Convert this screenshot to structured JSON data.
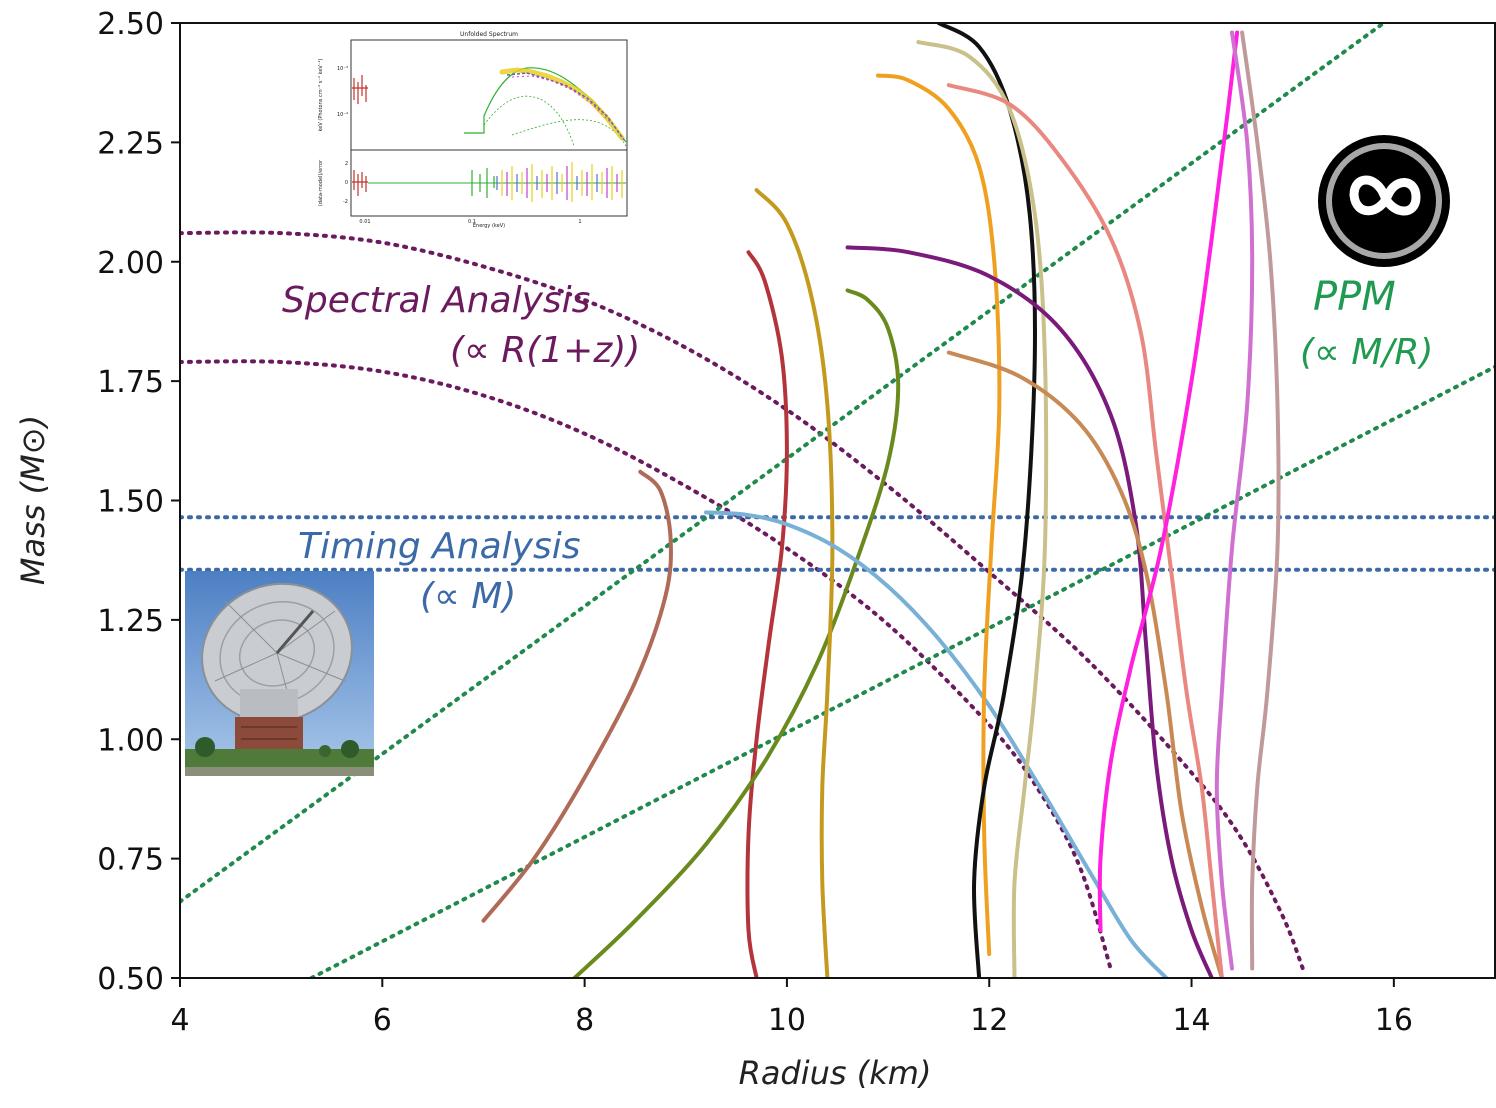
{
  "chart_data": {
    "type": "line",
    "xlabel": "Radius (km)",
    "ylabel": "Mass (M⊙)",
    "xlim": [
      4,
      17
    ],
    "ylim": [
      0.5,
      2.5
    ],
    "xticks": [
      "4",
      "6",
      "8",
      "10",
      "12",
      "14",
      "16"
    ],
    "yticks": [
      "0.50",
      "0.75",
      "1.00",
      "1.25",
      "1.50",
      "1.75",
      "2.00",
      "2.25",
      "2.50"
    ],
    "grid": false,
    "annotations": {
      "spectral_title": "Spectral Analysis",
      "spectral_prop": "(∝ R(1+z))",
      "timing_title": "Timing Analysis",
      "timing_prop": "(∝ M)",
      "ppm_title": "PPM",
      "ppm_prop": "(∝ M/R)"
    },
    "constraint_curves": [
      {
        "kind": "spectral",
        "color": "#6b1a5e",
        "x": [
          4.0,
          5.0,
          6.0,
          7.0,
          8.0,
          9.0,
          10.0,
          11.0,
          12.0,
          13.0,
          14.0,
          14.5,
          14.9,
          15.1
        ],
        "y": [
          2.06,
          2.06,
          2.04,
          1.99,
          1.92,
          1.82,
          1.69,
          1.53,
          1.35,
          1.16,
          0.93,
          0.79,
          0.63,
          0.52
        ]
      },
      {
        "kind": "spectral",
        "color": "#6b1a5e",
        "x": [
          4.0,
          5.0,
          6.0,
          7.0,
          8.0,
          9.0,
          10.0,
          11.0,
          12.0,
          12.5,
          12.9,
          13.2
        ],
        "y": [
          1.79,
          1.79,
          1.77,
          1.72,
          1.64,
          1.53,
          1.4,
          1.24,
          1.03,
          0.89,
          0.73,
          0.52
        ]
      },
      {
        "kind": "timing",
        "color": "#3b6aa6",
        "x": [
          4.0,
          17.0
        ],
        "y": [
          1.465,
          1.465
        ]
      },
      {
        "kind": "timing",
        "color": "#3b6aa6",
        "x": [
          4.0,
          17.0
        ],
        "y": [
          1.355,
          1.355
        ]
      },
      {
        "kind": "ppm",
        "color": "#1f8a4c",
        "x": [
          4.0,
          15.9
        ],
        "y": [
          0.66,
          2.5
        ]
      },
      {
        "kind": "ppm",
        "color": "#1f8a4c",
        "x": [
          5.3,
          17.0
        ],
        "y": [
          0.5,
          1.78
        ]
      }
    ],
    "series": [
      {
        "color": "#b06a58",
        "x": [
          7.0,
          7.5,
          8.0,
          8.5,
          8.8,
          8.85,
          8.75,
          8.55
        ],
        "y": [
          0.62,
          0.75,
          0.92,
          1.12,
          1.3,
          1.42,
          1.52,
          1.56
        ]
      },
      {
        "color": "#b3343b",
        "x": [
          9.7,
          9.62,
          9.62,
          9.7,
          9.82,
          9.95,
          10.0,
          9.95,
          9.78,
          9.62
        ],
        "y": [
          0.5,
          0.6,
          0.8,
          1.0,
          1.2,
          1.4,
          1.6,
          1.8,
          1.96,
          2.02
        ]
      },
      {
        "color": "#6b8a1e",
        "x": [
          7.9,
          8.5,
          9.2,
          9.8,
          10.3,
          10.7,
          11.0,
          11.1,
          11.0,
          10.8,
          10.6
        ],
        "y": [
          0.5,
          0.62,
          0.78,
          0.96,
          1.16,
          1.38,
          1.58,
          1.74,
          1.86,
          1.92,
          1.94
        ]
      },
      {
        "color": "#c49a1e",
        "x": [
          10.4,
          10.35,
          10.35,
          10.4,
          10.45,
          10.4,
          10.25,
          10.0,
          9.7
        ],
        "y": [
          0.5,
          0.7,
          0.9,
          1.1,
          1.4,
          1.7,
          1.92,
          2.08,
          2.15
        ]
      },
      {
        "color": "#78b0d6",
        "x": [
          9.2,
          9.6,
          10.0,
          10.5,
          11.0,
          11.5,
          12.0,
          12.5,
          13.0,
          13.4,
          13.75
        ],
        "y": [
          1.475,
          1.47,
          1.45,
          1.4,
          1.32,
          1.21,
          1.07,
          0.9,
          0.72,
          0.58,
          0.5
        ]
      },
      {
        "color": "#f0a020",
        "x": [
          12.0,
          11.95,
          11.95,
          12.02,
          12.1,
          12.05,
          11.9,
          11.6,
          11.2,
          10.9
        ],
        "y": [
          0.55,
          0.8,
          1.1,
          1.4,
          1.7,
          2.0,
          2.2,
          2.32,
          2.38,
          2.39
        ]
      },
      {
        "color": "#111111",
        "x": [
          11.9,
          11.85,
          11.95,
          12.15,
          12.35,
          12.45,
          12.4,
          12.2,
          11.9,
          11.5
        ],
        "y": [
          0.5,
          0.7,
          0.9,
          1.1,
          1.4,
          1.8,
          2.1,
          2.32,
          2.45,
          2.5
        ]
      },
      {
        "color": "#c9c08a",
        "x": [
          12.25,
          12.25,
          12.35,
          12.45,
          12.55,
          12.55,
          12.45,
          12.2,
          11.8,
          11.3
        ],
        "y": [
          0.5,
          0.7,
          0.9,
          1.1,
          1.4,
          1.8,
          2.1,
          2.32,
          2.43,
          2.46
        ]
      },
      {
        "color": "#7a1a7a",
        "x": [
          14.2,
          14.0,
          13.8,
          13.65,
          13.55,
          13.45,
          13.2,
          12.7,
          12.0,
          11.2,
          10.6
        ],
        "y": [
          0.5,
          0.6,
          0.75,
          0.95,
          1.2,
          1.45,
          1.68,
          1.86,
          1.97,
          2.02,
          2.03
        ]
      },
      {
        "color": "#c88a55",
        "x": [
          14.3,
          14.1,
          13.9,
          13.75,
          13.55,
          13.3,
          12.9,
          12.3,
          11.6
        ],
        "y": [
          0.5,
          0.65,
          0.85,
          1.1,
          1.35,
          1.52,
          1.66,
          1.76,
          1.81
        ]
      },
      {
        "color": "#e88880",
        "x": [
          14.3,
          14.2,
          14.1,
          13.95,
          13.8,
          13.65,
          13.5,
          13.2,
          12.7,
          12.2,
          11.6
        ],
        "y": [
          0.5,
          0.7,
          0.9,
          1.1,
          1.35,
          1.6,
          1.85,
          2.05,
          2.22,
          2.33,
          2.37
        ]
      },
      {
        "color": "#ff20e0",
        "x": [
          13.1,
          13.1,
          13.2,
          13.4,
          13.7,
          14.0,
          14.2,
          14.35,
          14.45
        ],
        "y": [
          0.6,
          0.75,
          0.95,
          1.15,
          1.4,
          1.75,
          2.05,
          2.3,
          2.48
        ]
      },
      {
        "color": "#d070d0",
        "x": [
          14.4,
          14.3,
          14.25,
          14.3,
          14.4,
          14.55,
          14.6,
          14.55,
          14.4
        ],
        "y": [
          0.52,
          0.7,
          0.9,
          1.1,
          1.4,
          1.7,
          2.0,
          2.25,
          2.48
        ]
      },
      {
        "color": "#c09a9a",
        "x": [
          14.6,
          14.6,
          14.65,
          14.75,
          14.85,
          14.85,
          14.78,
          14.65,
          14.5
        ],
        "y": [
          0.52,
          0.7,
          0.9,
          1.1,
          1.4,
          1.7,
          2.0,
          2.25,
          2.48
        ]
      }
    ]
  },
  "inset_spectrum": {
    "title": "Unfolded Spectrum",
    "ylabel_top": "keV (Photons cm⁻² s⁻¹ keV⁻¹)",
    "ylabel_bottom": "(data-model)/error",
    "xlabel": "Energy (keV)",
    "ytick_top_1": "10⁻³",
    "ytick_top_2": "10⁻⁴",
    "ytick_bottom": [
      "2",
      "0",
      "-2"
    ],
    "xtick_1": "0.01",
    "xtick_2": "0.1",
    "xtick_3": "1"
  }
}
